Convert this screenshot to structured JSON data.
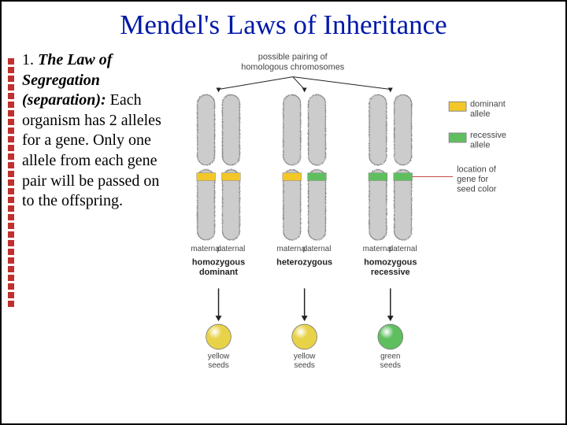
{
  "title": "Mendel's Laws of Inheritance",
  "law": {
    "number": "1.",
    "heading": "The Law of Segregation (separation):",
    "body": "Each organism has 2 alleles for a gene.  Only one allele from each gene pair will be passed on to the offspring."
  },
  "diagram": {
    "top_label": "possible pairing of\nhomologous chromosomes",
    "legend": {
      "dominant": {
        "label": "dominant\nallele",
        "color": "#f3c727"
      },
      "recessive": {
        "label": "recessive\nallele",
        "color": "#5fbf5f"
      }
    },
    "seed_locus_label": "location of\ngene for\nseed color",
    "pairs": [
      {
        "maternal_allele": "dominant",
        "paternal_allele": "dominant",
        "genotype": "homozygous\ndominant",
        "seed_label": "yellow\nseeds",
        "seed_color": "#e8d248"
      },
      {
        "maternal_allele": "dominant",
        "paternal_allele": "recessive",
        "genotype": "heterozygous",
        "seed_label": "yellow\nseeds",
        "seed_color": "#e8d248"
      },
      {
        "maternal_allele": "recessive",
        "paternal_allele": "recessive",
        "genotype": "homozygous\nrecessive",
        "seed_label": "green\nseeds",
        "seed_color": "#5fbf5f"
      }
    ],
    "maternal_label": "maternal",
    "paternal_label": "paternal",
    "chromosome_body_color": "#cccccc",
    "chromosome_edge_color": "#888888",
    "label_font_size": 11,
    "label_color": "#444444",
    "background": "#ffffff",
    "arrow_color": "#222222"
  }
}
